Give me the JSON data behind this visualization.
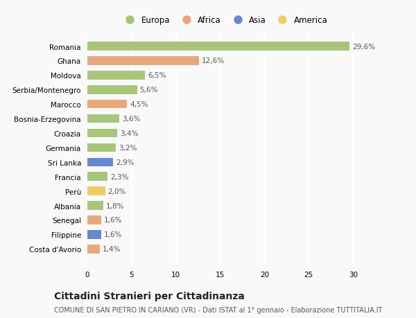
{
  "categories": [
    "Costa d'Avorio",
    "Filippine",
    "Senegal",
    "Albania",
    "Perù",
    "Francia",
    "Sri Lanka",
    "Germania",
    "Croazia",
    "Bosnia-Erzegovina",
    "Marocco",
    "Serbia/Montenegro",
    "Moldova",
    "Ghana",
    "Romania"
  ],
  "values": [
    1.4,
    1.6,
    1.6,
    1.8,
    2.0,
    2.3,
    2.9,
    3.2,
    3.4,
    3.6,
    4.5,
    5.6,
    6.5,
    12.6,
    29.6
  ],
  "labels": [
    "1,4%",
    "1,6%",
    "1,6%",
    "1,8%",
    "2,0%",
    "2,3%",
    "2,9%",
    "3,2%",
    "3,4%",
    "3,6%",
    "4,5%",
    "5,6%",
    "6,5%",
    "12,6%",
    "29,6%"
  ],
  "continents": [
    "Africa",
    "Asia",
    "Africa",
    "Europa",
    "America",
    "Europa",
    "Asia",
    "Europa",
    "Europa",
    "Europa",
    "Africa",
    "Europa",
    "Europa",
    "Africa",
    "Europa"
  ],
  "colors": {
    "Europa": "#a8c57a",
    "Africa": "#e8a87c",
    "Asia": "#6688cc",
    "America": "#f0cc66"
  },
  "legend_order": [
    "Europa",
    "Africa",
    "Asia",
    "America"
  ],
  "xlim": [
    0,
    31
  ],
  "xticks": [
    0,
    5,
    10,
    15,
    20,
    25,
    30
  ],
  "title": "Cittadini Stranieri per Cittadinanza",
  "subtitle": "COMUNE DI SAN PIETRO IN CARIANO (VR) - Dati ISTAT al 1° gennaio - Elaborazione TUTTITALIA.IT",
  "bg_color": "#f9f9f9",
  "bar_height": 0.6,
  "label_fontsize": 7.5,
  "title_fontsize": 10,
  "subtitle_fontsize": 7,
  "tick_fontsize": 7.5,
  "legend_fontsize": 8.5
}
